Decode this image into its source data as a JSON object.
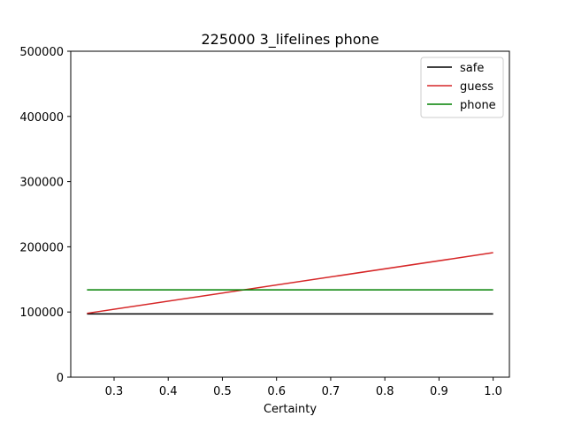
{
  "chart_data": {
    "type": "line",
    "title": "225000 3_lifelines phone",
    "xlabel": "Certainty",
    "ylabel": "",
    "xlim": [
      0.22,
      1.03
    ],
    "ylim": [
      0,
      500000
    ],
    "xticks": [
      0.3,
      0.4,
      0.5,
      0.6,
      0.7,
      0.8,
      0.9,
      1.0
    ],
    "xtick_labels": [
      "0.3",
      "0.4",
      "0.5",
      "0.6",
      "0.7",
      "0.8",
      "0.9",
      "1.0"
    ],
    "yticks": [
      0,
      100000,
      200000,
      300000,
      400000,
      500000
    ],
    "ytick_labels": [
      "0",
      "100000",
      "200000",
      "300000",
      "400000",
      "500000"
    ],
    "grid": false,
    "legend_position": "top-right",
    "series": [
      {
        "name": "safe",
        "color": "#000000",
        "x": [
          0.25,
          1.0
        ],
        "y": [
          97000,
          97000
        ]
      },
      {
        "name": "guess",
        "color": "#d62728",
        "x": [
          0.25,
          1.0
        ],
        "y": [
          98000,
          191000
        ]
      },
      {
        "name": "phone",
        "color": "#008000",
        "x": [
          0.25,
          1.0
        ],
        "y": [
          134000,
          134000
        ]
      }
    ]
  }
}
